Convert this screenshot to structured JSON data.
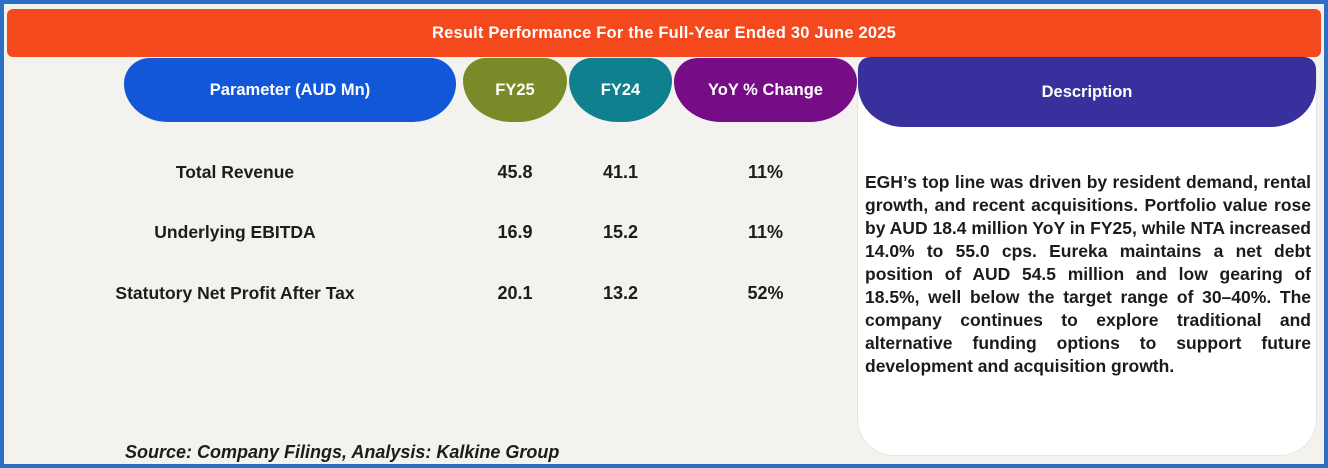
{
  "banner": {
    "title": "Result Performance For the Full-Year Ended 30 June 2025"
  },
  "table": {
    "columns": [
      {
        "label": "Parameter (AUD Mn)",
        "color": "#1157D8"
      },
      {
        "label": "FY25",
        "color": "#7A8A28"
      },
      {
        "label": "FY24",
        "color": "#0F808D"
      },
      {
        "label": "YoY % Change",
        "color": "#760C86"
      },
      {
        "label": "Description",
        "color": "#38309C"
      }
    ],
    "rows": [
      {
        "parameter": "Total Revenue",
        "fy25": "45.8",
        "fy24": "41.1",
        "yoy": "11%"
      },
      {
        "parameter": "Underlying EBITDA",
        "fy25": "16.9",
        "fy24": "15.2",
        "yoy": "11%"
      },
      {
        "parameter": "Statutory Net Profit After Tax",
        "fy25": "20.1",
        "fy24": "13.2",
        "yoy": "52%"
      }
    ]
  },
  "description": {
    "header": "Description",
    "text": "EGH’s top line was driven by resident demand, rental growth, and recent acquisitions. Portfolio value rose by AUD 18.4 million YoY in FY25, while NTA increased 14.0% to 55.0 cps. Eureka maintains a net debt position of AUD 54.5 million and low gearing of 18.5%, well below the target range of 30–40%. The company continues to explore traditional and alternative funding options to support future development and acquisition growth."
  },
  "source": {
    "text": "Source: Company Filings, Analysis: Kalkine Group"
  },
  "colors": {
    "border": "#2E6FC6",
    "page_background": "#F3F2EE",
    "banner_orange": "#F4481D",
    "parameter_blue": "#1157D8",
    "fy25_olive": "#7A8A28",
    "fy24_teal": "#0F808D",
    "yoy_purple": "#760C86",
    "description_indigo": "#38309C",
    "text_dark": "#1C1C1C",
    "card_white": "#FFFFFF"
  },
  "chart_data": {
    "type": "table",
    "title": "Result Performance For the Full-Year Ended 30 June 2025",
    "columns": [
      "Parameter (AUD Mn)",
      "FY25",
      "FY24",
      "YoY % Change",
      "Description"
    ],
    "rows": [
      [
        "Total Revenue",
        45.8,
        41.1,
        "11%"
      ],
      [
        "Underlying EBITDA",
        16.9,
        15.2,
        "11%"
      ],
      [
        "Statutory Net Profit After Tax",
        20.1,
        13.2,
        "52%"
      ]
    ],
    "description_cell": "EGH’s top line was driven by resident demand, rental growth, and recent acquisitions. Portfolio value rose by AUD 18.4 million YoY in FY25, while NTA increased 14.0% to 55.0 cps. Eureka maintains a net debt position of AUD 54.5 million and low gearing of 18.5%, well below the target range of 30–40%. The company continues to explore traditional and alternative funding options to support future development and acquisition growth.",
    "source": "Source: Company Filings, Analysis: Kalkine Group"
  }
}
